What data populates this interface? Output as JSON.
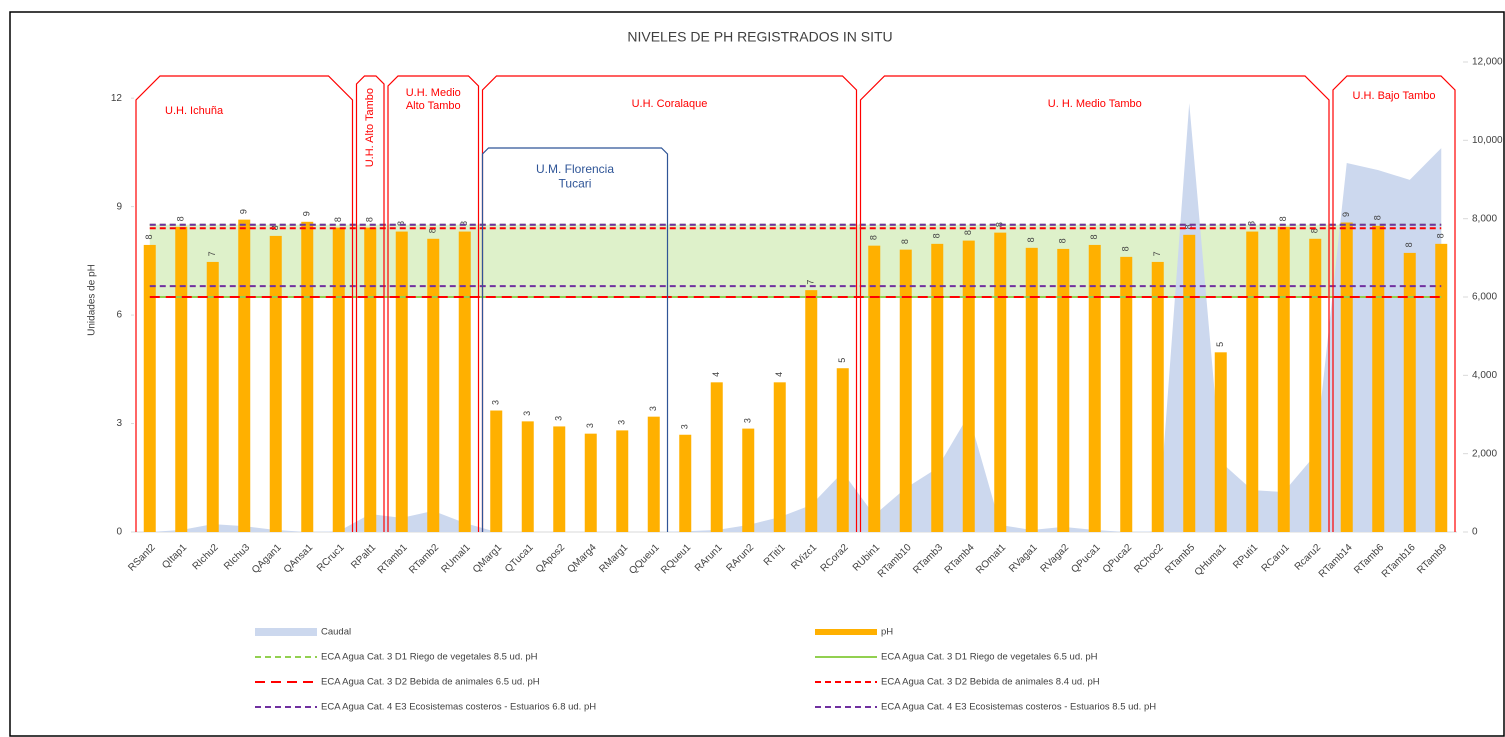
{
  "chart_data": {
    "type": "bar",
    "title": "NIVELES DE PH REGISTRADOS IN SITU",
    "y_label": "Unidades de pH",
    "categories": [
      "RSant2",
      "QItap1",
      "RIchu2",
      "RIchu3",
      "QAgan1",
      "QAnsa1",
      "RCruc1",
      "RPalt1",
      "RTamb1",
      "RTamb2",
      "RUmal1",
      "QMarg1",
      "QTuca1",
      "QApos2",
      "QMarg4",
      "RMarg1",
      "QQueu1",
      "RQueu1",
      "RArun1",
      "RArun2",
      "RTiti1",
      "RVizc1",
      "RCora2",
      "RUbin1",
      "RTamb10",
      "RTamb3",
      "RTamb4",
      "ROmat1",
      "RVaga1",
      "RVaga2",
      "QPuca1",
      "QPuca2",
      "RChoc2",
      "RTamb5",
      "QHuma1",
      "RPuti1",
      "RCaru1",
      "Rcaru2",
      "RTamb14",
      "RTamb6",
      "RTamb16",
      "RTamb9"
    ],
    "series": [
      {
        "name": "Caudal",
        "type": "area",
        "axis": "y2",
        "color": "#ccd8ee",
        "values": [
          0,
          50,
          200,
          150,
          50,
          0,
          20,
          460,
          360,
          540,
          230,
          0,
          0,
          0,
          0,
          0,
          0,
          20,
          50,
          180,
          380,
          690,
          1530,
          430,
          1120,
          1630,
          2990,
          180,
          50,
          130,
          50,
          0,
          20,
          10950,
          1790,
          1070,
          1020,
          1970,
          9420,
          9240,
          8990,
          9800
        ]
      },
      {
        "name": "pH",
        "type": "bar",
        "color": "#ffb000",
        "values": [
          7.94,
          8.44,
          7.47,
          8.64,
          8.19,
          8.58,
          8.42,
          8.42,
          8.31,
          8.11,
          8.31,
          3.36,
          3.06,
          2.92,
          2.72,
          2.81,
          3.19,
          2.69,
          4.14,
          2.86,
          4.14,
          6.69,
          4.53,
          7.92,
          7.81,
          7.97,
          8.06,
          8.28,
          7.86,
          7.83,
          7.94,
          7.61,
          7.47,
          8.22,
          4.97,
          8.31,
          8.44,
          8.11,
          8.56,
          8.47,
          7.72,
          7.97
        ],
        "value_labels": [
          "8",
          "8",
          "7",
          "9",
          "8",
          "9",
          "8",
          "8",
          "8",
          "8",
          "8",
          "3",
          "3",
          "3",
          "3",
          "3",
          "3",
          "3",
          "4",
          "3",
          "4",
          "7",
          "5",
          "8",
          "8",
          "8",
          "8",
          "8",
          "8",
          "8",
          "8",
          "8",
          "7",
          "8",
          "5",
          "8",
          "8",
          "8",
          "9",
          "8",
          "8",
          "8"
        ]
      }
    ],
    "reference_lines": [
      {
        "name": "ECA Agua Cat. 3 D1 Riego de vegetales 8.5 ud. pH",
        "value": 8.5,
        "color": "#92d050",
        "style": "dashed"
      },
      {
        "name": "ECA Agua Cat. 3 D1 Riego de vegetales 6.5 ud. pH",
        "value": 6.5,
        "color": "#92d050",
        "style": "solid"
      },
      {
        "name": "ECA Agua Cat. 3 D2 Bebida de animales 6.5 ud. pH",
        "value": 6.5,
        "color": "#ff0000",
        "style": "longdash"
      },
      {
        "name": "ECA Agua Cat. 3 D2 Bebida de animales 8.4 ud. pH",
        "value": 8.4,
        "color": "#ff0000",
        "style": "dashed"
      },
      {
        "name": "ECA Agua Cat. 4 E3 Ecosistemas costeros - Estuarios 6.8 ud. pH",
        "value": 6.8,
        "color": "#7030a0",
        "style": "dashed"
      },
      {
        "name": "ECA Agua Cat. 4 E3 Ecosistemas costeros - Estuarios 8.5 ud. pH",
        "value": 8.5,
        "color": "#7030a0",
        "style": "dashed"
      }
    ],
    "groups": [
      {
        "label": [
          "U.H. Ichuña"
        ],
        "color": "#ff0000"
      },
      {
        "label": [
          "U.H. Alto Tambo"
        ],
        "color": "#ff0000"
      },
      {
        "label": [
          "U.H. Medio",
          "Alto Tambo"
        ],
        "color": "#ff0000"
      },
      {
        "label": [
          "U.H. Coralaque"
        ],
        "color": "#ff0000"
      },
      {
        "label": [
          "U. H. Medio Tambo"
        ],
        "color": "#ff0000"
      },
      {
        "label": [
          "U.H. Bajo Tambo"
        ],
        "color": "#ff0000"
      },
      {
        "label": [
          "U.M. Florencia",
          "Tucari"
        ],
        "color": "#2f5597"
      }
    ],
    "ylim": [
      0,
      13
    ],
    "yticks": [
      0,
      3,
      6,
      9,
      12
    ],
    "y2lim": [
      0,
      12000
    ],
    "y2ticks": [
      0,
      {
        "value": 2000,
        "label": "2,000"
      },
      {
        "value": 4000,
        "label": "4,000"
      },
      {
        "value": 6000,
        "label": "6,000"
      },
      {
        "value": 8000,
        "label": "8,000"
      },
      {
        "value": 10000,
        "label": "10,000"
      },
      {
        "value": 12000,
        "label": "12,000"
      }
    ],
    "legend": "bottom"
  }
}
